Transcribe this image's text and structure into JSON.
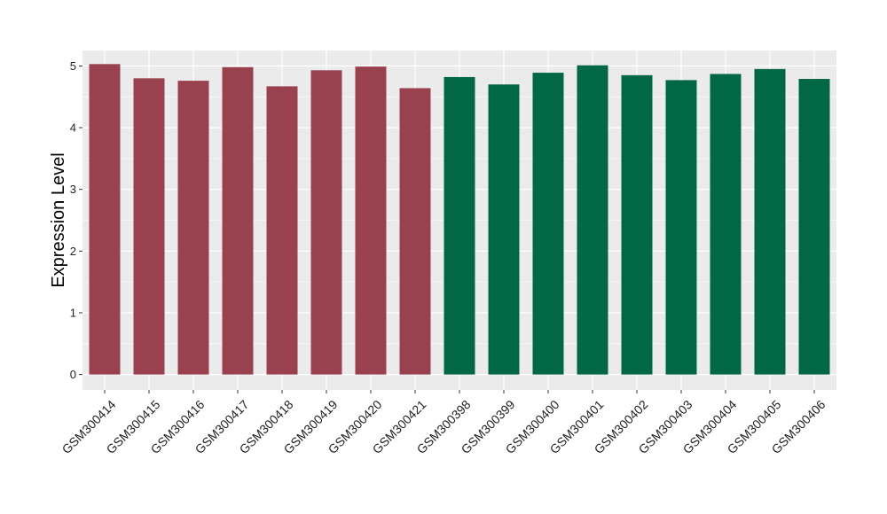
{
  "chart_data": {
    "type": "bar",
    "ylabel": "Expression Level",
    "ylim": [
      -0.25,
      5.25
    ],
    "yticks": [
      0,
      1,
      2,
      3,
      4,
      5
    ],
    "grid": true,
    "legend": "none",
    "categories": [
      "GSM300414",
      "GSM300415",
      "GSM300416",
      "GSM300417",
      "GSM300418",
      "GSM300419",
      "GSM300420",
      "GSM300421",
      "GSM300398",
      "GSM300399",
      "GSM300400",
      "GSM300401",
      "GSM300402",
      "GSM300403",
      "GSM300404",
      "GSM300405",
      "GSM300406"
    ],
    "values": [
      5.03,
      4.8,
      4.76,
      4.98,
      4.67,
      4.93,
      4.99,
      4.64,
      4.82,
      4.7,
      4.89,
      5.01,
      4.85,
      4.77,
      4.87,
      4.95,
      4.79
    ],
    "group_colors": [
      "#9a4150",
      "#9a4150",
      "#9a4150",
      "#9a4150",
      "#9a4150",
      "#9a4150",
      "#9a4150",
      "#9a4150",
      "#026745",
      "#026745",
      "#026745",
      "#026745",
      "#026745",
      "#026745",
      "#026745",
      "#026745",
      "#026745"
    ]
  },
  "colors": {
    "panel_background": "#ebebeb",
    "grid_major": "#ffffff"
  }
}
